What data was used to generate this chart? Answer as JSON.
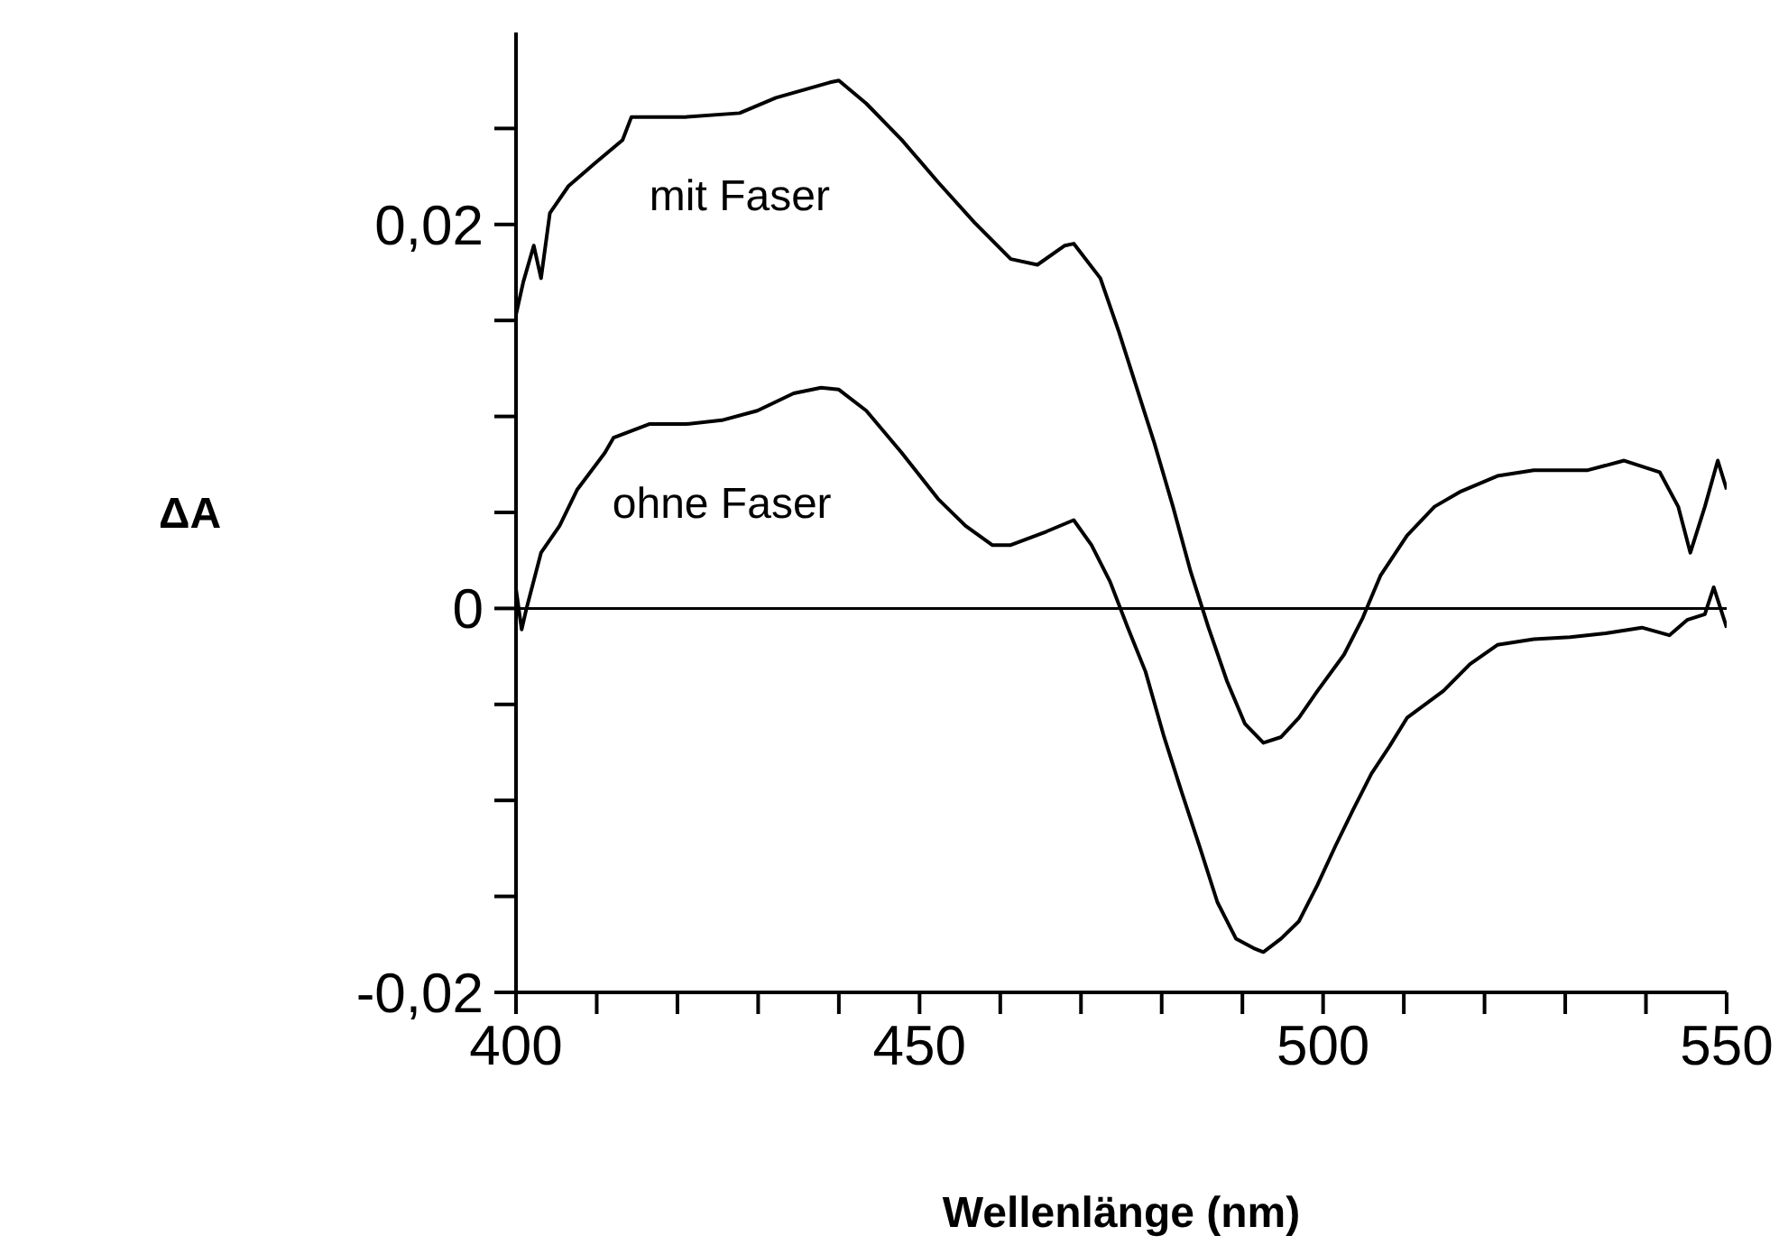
{
  "chart_data": {
    "type": "line",
    "xlabel": "Wellenlänge (nm)",
    "ylabel": "ΔA",
    "xlim": [
      400,
      550
    ],
    "ylim": [
      -0.02,
      0.03
    ],
    "xticks": [
      400,
      {
        "value": 410,
        "label": null
      },
      {
        "value": 420,
        "label": null
      },
      {
        "value": 430,
        "label": null
      },
      {
        "value": 440,
        "label": null
      },
      450,
      {
        "value": 460,
        "label": null
      },
      {
        "value": 470,
        "label": null
      },
      {
        "value": 480,
        "label": null
      },
      {
        "value": 490,
        "label": null
      },
      500,
      {
        "value": 510,
        "label": null
      },
      {
        "value": 520,
        "label": null
      },
      {
        "value": 530,
        "label": null
      },
      {
        "value": 540,
        "label": null
      },
      550
    ],
    "yticks": [
      {
        "value": -0.02,
        "label": "-0,02"
      },
      {
        "value": -0.015,
        "label": null
      },
      {
        "value": -0.01,
        "label": null
      },
      {
        "value": -0.005,
        "label": null
      },
      0,
      {
        "value": 0.005,
        "label": null
      },
      {
        "value": 0.01,
        "label": null
      },
      {
        "value": 0.015,
        "label": null
      },
      {
        "value": 0.02,
        "label": "0,02"
      },
      {
        "value": 0.025,
        "label": null
      }
    ],
    "grid": false,
    "marker": "none",
    "line_style": "solid",
    "ref_lines": [
      {
        "axis": "y",
        "value": 0,
        "color": "#000000"
      }
    ],
    "series": [
      {
        "name": "mit Faser",
        "color": "#000000",
        "x": [
          400,
          400.9,
          402.2,
          403.1,
          404.2,
          406.5,
          409.8,
          413.2,
          414.3,
          421,
          427.7,
          432.2,
          438.9,
          440,
          443.4,
          447.8,
          452.3,
          456.8,
          461.3,
          464.6,
          468,
          469.1,
          472.4,
          474.7,
          476.9,
          479.1,
          481.4,
          483.6,
          485.8,
          488.1,
          490.3,
          492.6,
          494.8,
          497,
          499.3,
          502.6,
          504.9,
          507.1,
          510.4,
          513.8,
          517.1,
          521.6,
          526.1,
          532.8,
          537.3,
          541.7,
          544,
          545.5,
          547.3,
          548.9,
          550
        ],
        "values": [
          0.0153,
          0.017,
          0.0189,
          0.0172,
          0.0206,
          0.022,
          0.0232,
          0.0244,
          0.0256,
          0.0256,
          0.0258,
          0.0266,
          0.0274,
          0.0275,
          0.0263,
          0.0244,
          0.0222,
          0.0201,
          0.0182,
          0.0179,
          0.0189,
          0.019,
          0.0172,
          0.0144,
          0.0115,
          0.0086,
          0.0053,
          0.0019,
          -0.001,
          -0.0038,
          -0.006,
          -0.007,
          -0.0067,
          -0.0057,
          -0.0043,
          -0.0024,
          -0.0005,
          0.0017,
          0.0038,
          0.0053,
          0.0061,
          0.0069,
          0.0072,
          0.0072,
          0.0077,
          0.0071,
          0.0053,
          0.0029,
          0.0053,
          0.0077,
          0.0062
        ]
      },
      {
        "name": "ohne Faser",
        "color": "#000000",
        "x": [
          400,
          400.7,
          401.3,
          403.1,
          405.4,
          407.6,
          411,
          412.1,
          416.5,
          421,
          425.5,
          429.9,
          434.4,
          437.8,
          440,
          443.4,
          447.8,
          452.3,
          455.7,
          459,
          461.3,
          465.7,
          469.1,
          471.3,
          473.6,
          475.8,
          478,
          480.3,
          482.5,
          484.7,
          486.9,
          489.2,
          491.4,
          492.6,
          494.8,
          497,
          499.3,
          501.5,
          503.7,
          506,
          508.2,
          510.4,
          514.9,
          518.2,
          521.6,
          526.1,
          530.6,
          535,
          539.5,
          542.9,
          545.1,
          547.3,
          548.4,
          550
        ],
        "values": [
          0.001,
          -0.0011,
          0,
          0.0029,
          0.0043,
          0.0062,
          0.0081,
          0.0089,
          0.0096,
          0.0096,
          0.0098,
          0.0103,
          0.0112,
          0.0115,
          0.0114,
          0.0103,
          0.0081,
          0.0057,
          0.0043,
          0.0033,
          0.0033,
          0.004,
          0.0046,
          0.0033,
          0.0014,
          -0.001,
          -0.0033,
          -0.0067,
          -0.0096,
          -0.0124,
          -0.0153,
          -0.0172,
          -0.0177,
          -0.0179,
          -0.0172,
          -0.0163,
          -0.0144,
          -0.0124,
          -0.0105,
          -0.0086,
          -0.0072,
          -0.0057,
          -0.0043,
          -0.0029,
          -0.0019,
          -0.0016,
          -0.0015,
          -0.0013,
          -0.001,
          -0.0014,
          -0.0006,
          -0.0003,
          0.0011,
          -0.001
        ]
      }
    ]
  }
}
